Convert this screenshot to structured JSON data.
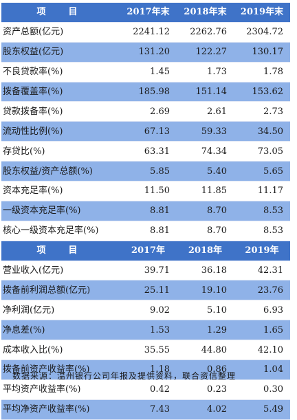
{
  "colors": {
    "header": "#3f73c8",
    "stripe": "#8fb2e8",
    "background": "#ffffff"
  },
  "table1": {
    "headers": [
      "项　目",
      "2017年末",
      "2018年末",
      "2019年末"
    ],
    "rows": [
      {
        "label": "资产总额(亿元)",
        "values": [
          "2241.12",
          "2262.76",
          "2304.72"
        ]
      },
      {
        "label": "股东权益(亿元)",
        "values": [
          "131.20",
          "122.27",
          "130.17"
        ]
      },
      {
        "label": "不良贷款率(%)",
        "values": [
          "1.45",
          "1.73",
          "1.78"
        ]
      },
      {
        "label": "拨备覆盖率(%)",
        "values": [
          "185.98",
          "151.14",
          "153.62"
        ]
      },
      {
        "label": "贷款拨备率(%)",
        "values": [
          "2.69",
          "2.61",
          "2.73"
        ]
      },
      {
        "label": "流动性比例(%)",
        "values": [
          "67.13",
          "59.33",
          "34.50"
        ]
      },
      {
        "label": "存贷比(%)",
        "values": [
          "63.31",
          "74.34",
          "73.05"
        ]
      },
      {
        "label": "股东权益/资产总额(%)",
        "values": [
          "5.85",
          "5.40",
          "5.65"
        ]
      },
      {
        "label": "资本充足率(%)",
        "values": [
          "11.50",
          "11.85",
          "11.17"
        ]
      },
      {
        "label": "一级资本充足率(%)",
        "values": [
          "8.81",
          "8.70",
          "8.53"
        ]
      },
      {
        "label": "核心一级资本充足率(%)",
        "values": [
          "8.81",
          "8.70",
          "8.53"
        ]
      }
    ]
  },
  "table2": {
    "headers": [
      "项　目",
      "2017年",
      "2018年",
      "2019年"
    ],
    "rows": [
      {
        "label": "营业收入(亿元)",
        "values": [
          "39.71",
          "36.18",
          "42.31"
        ]
      },
      {
        "label": "拨备前利润总额(亿元)",
        "values": [
          "25.11",
          "19.10",
          "23.76"
        ]
      },
      {
        "label": "净利润(亿元)",
        "values": [
          "9.02",
          "5.10",
          "6.93"
        ]
      },
      {
        "label": "净息差(%)",
        "values": [
          "1.53",
          "1.29",
          "1.65"
        ]
      },
      {
        "label": "成本收入比(%)",
        "values": [
          "35.55",
          "44.80",
          "42.10"
        ]
      },
      {
        "label": "拨备前资产收益率(%)",
        "values": [
          "1.18",
          "0.86",
          "1.04"
        ]
      },
      {
        "label": "平均资产收益率(%)",
        "values": [
          "0.42",
          "0.23",
          "0.30"
        ]
      },
      {
        "label": "平均净资产收益率(%)",
        "values": [
          "7.43",
          "4.02",
          "5.49"
        ]
      }
    ]
  },
  "source_note": "数据来源：温州银行公司年报及提供资料，联合资信整理"
}
